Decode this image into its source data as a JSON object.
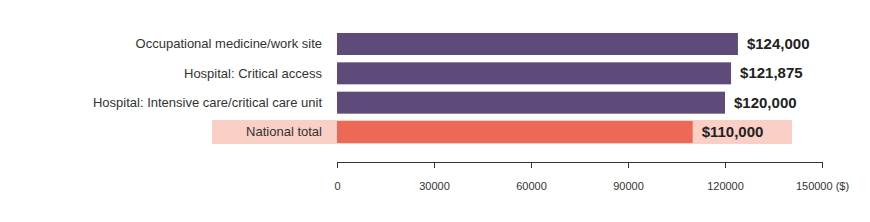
{
  "chart_data": {
    "type": "bar",
    "orientation": "horizontal",
    "categories": [
      "Occupational medicine/work site",
      "Hospital: Critical access",
      "Hospital: Intensive care/critical care unit",
      "National total"
    ],
    "values": [
      124000,
      121875,
      120000,
      110000
    ],
    "value_labels": [
      "$124,000",
      "$121,875",
      "$120,000",
      "$110,000"
    ],
    "colors": [
      "#5e4b7a",
      "#5e4b7a",
      "#5e4b7a",
      "#ec6a55"
    ],
    "xlim": [
      0,
      150000
    ],
    "xticks": [
      0,
      30000,
      60000,
      90000,
      120000,
      {
        "value": 150000,
        "label": "150000 ($)"
      }
    ],
    "data_labels": true,
    "grid": false
  }
}
